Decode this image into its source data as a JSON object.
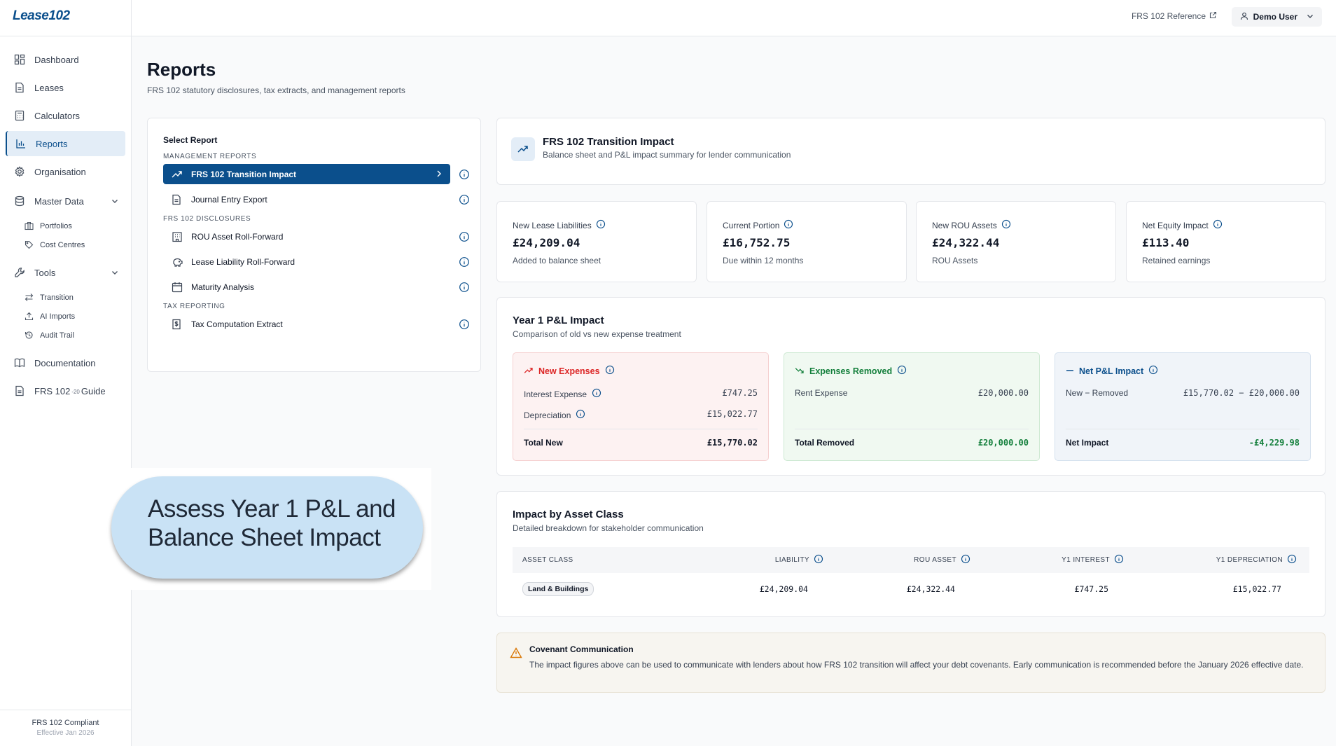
{
  "app": {
    "logo": "Lease102"
  },
  "colors": {
    "brand": "#0b4f8c",
    "negative": "#dc2626",
    "positive": "#15803d"
  },
  "sidebar": {
    "items": [
      {
        "label": "Dashboard",
        "icon": "dashboard-icon"
      },
      {
        "label": "Leases",
        "icon": "document-icon"
      },
      {
        "label": "Calculators",
        "icon": "calculator-icon"
      },
      {
        "label": "Reports",
        "icon": "bar-chart-icon",
        "active": true
      },
      {
        "label": "Organisation",
        "icon": "gear-icon"
      }
    ],
    "master_data": {
      "label": "Master Data",
      "children": [
        "Portfolios",
        "Cost Centres"
      ]
    },
    "tools": {
      "label": "Tools",
      "children": [
        "Transition",
        "AI Imports",
        "Audit Trail"
      ]
    },
    "documentation": "Documentation",
    "guide": {
      "label": "FRS 102",
      "sup": "-20",
      "suffix": "Guide"
    },
    "footer": {
      "line1": "FRS 102 Compliant",
      "line2": "Effective Jan 2026"
    }
  },
  "topbar": {
    "reference_link": "FRS 102 Reference",
    "user": "Demo User"
  },
  "page": {
    "title": "Reports",
    "subtitle": "FRS 102 statutory disclosures, tax extracts, and management reports"
  },
  "selector": {
    "title": "Select Report",
    "groups": [
      {
        "title": "MANAGEMENT REPORTS",
        "reports": [
          "FRS 102 Transition Impact",
          "Journal Entry Export"
        ]
      },
      {
        "title": "FRS 102 DISCLOSURES",
        "reports": [
          "ROU Asset Roll-Forward",
          "Lease Liability Roll-Forward",
          "Maturity Analysis"
        ]
      },
      {
        "title": "TAX REPORTING",
        "reports": [
          "Tax Computation Extract"
        ]
      }
    ]
  },
  "report_header": {
    "title": "FRS 102 Transition Impact",
    "subtitle": "Balance sheet and P&L impact summary for lender communication"
  },
  "metrics": [
    {
      "label": "New Lease Liabilities",
      "value": "£24,209.04",
      "note": "Added to balance sheet"
    },
    {
      "label": "Current Portion",
      "value": "£16,752.75",
      "note": "Due within 12 months"
    },
    {
      "label": "New ROU Assets",
      "value": "£24,322.44",
      "note": "ROU Assets"
    },
    {
      "label": "Net Equity Impact",
      "value": "£113.40",
      "note": "Retained earnings"
    }
  ],
  "pl_impact": {
    "title": "Year 1 P&L Impact",
    "subtitle": "Comparison of old vs new expense treatment",
    "new_expenses": {
      "title": "New Expenses",
      "lines": [
        {
          "label": "Interest Expense",
          "value": "£747.25"
        },
        {
          "label": "Depreciation",
          "value": "£15,022.77"
        }
      ],
      "total_label": "Total New",
      "total_value": "£15,770.02"
    },
    "expenses_removed": {
      "title": "Expenses Removed",
      "lines": [
        {
          "label": "Rent Expense",
          "value": "£20,000.00"
        }
      ],
      "total_label": "Total Removed",
      "total_value": "£20,000.00"
    },
    "net_impact": {
      "title": "Net P&L Impact",
      "lines": [
        {
          "label": "New − Removed",
          "value": "£15,770.02 − £20,000.00"
        }
      ],
      "total_label": "Net Impact",
      "total_value": "-£4,229.98"
    }
  },
  "asset_class": {
    "title": "Impact by Asset Class",
    "subtitle": "Detailed breakdown for stakeholder communication",
    "columns": [
      "ASSET CLASS",
      "LIABILITY",
      "ROU ASSET",
      "Y1 INTEREST",
      "Y1 DEPRECIATION"
    ],
    "rows": [
      {
        "asset_class": "Land & Buildings",
        "liability": "£24,209.04",
        "rou_asset": "£24,322.44",
        "y1_interest": "£747.25",
        "y1_depreciation": "£15,022.77"
      }
    ]
  },
  "covenant": {
    "title": "Covenant Communication",
    "text": "The impact figures above can be used to communicate with lenders about how FRS 102 transition will affect your debt covenants. Early communication is recommended before the January 2026 effective date."
  },
  "callout": {
    "line1": "Assess Year 1 P&L and",
    "line2": "Balance Sheet Impact"
  }
}
